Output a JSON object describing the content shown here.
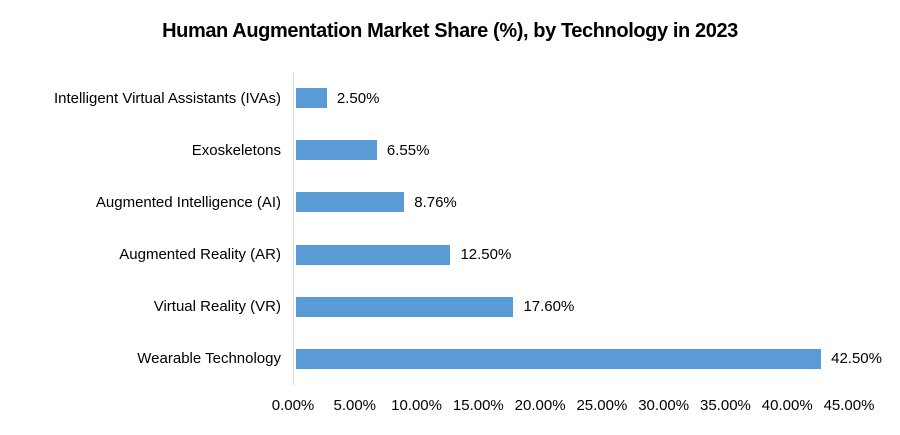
{
  "title": "Human Augmentation Market Share (%), by Technology in 2023",
  "chart_data": {
    "type": "bar",
    "orientation": "horizontal",
    "title": "Human Augmentation Market Share (%), by Technology in 2023",
    "categories": [
      "Intelligent Virtual Assistants (IVAs)",
      "Exoskeletons",
      "Augmented Intelligence (AI)",
      "Augmented Reality (AR)",
      "Virtual Reality (VR)",
      "Wearable Technology"
    ],
    "values": [
      2.5,
      6.55,
      8.76,
      12.5,
      17.6,
      42.5
    ],
    "data_labels": [
      "2.50%",
      "6.55%",
      "8.76%",
      "12.50%",
      "17.60%",
      "42.50%"
    ],
    "x_ticks": [
      "0.00%",
      "5.00%",
      "10.00%",
      "15.00%",
      "20.00%",
      "25.00%",
      "30.00%",
      "35.00%",
      "40.00%",
      "45.00%"
    ],
    "xlim": [
      0,
      45
    ],
    "xlabel": "",
    "ylabel": "",
    "bar_color": "#5B9BD5",
    "axis_line_color": "#D9D9D9",
    "grid": "off",
    "legend": "none"
  }
}
